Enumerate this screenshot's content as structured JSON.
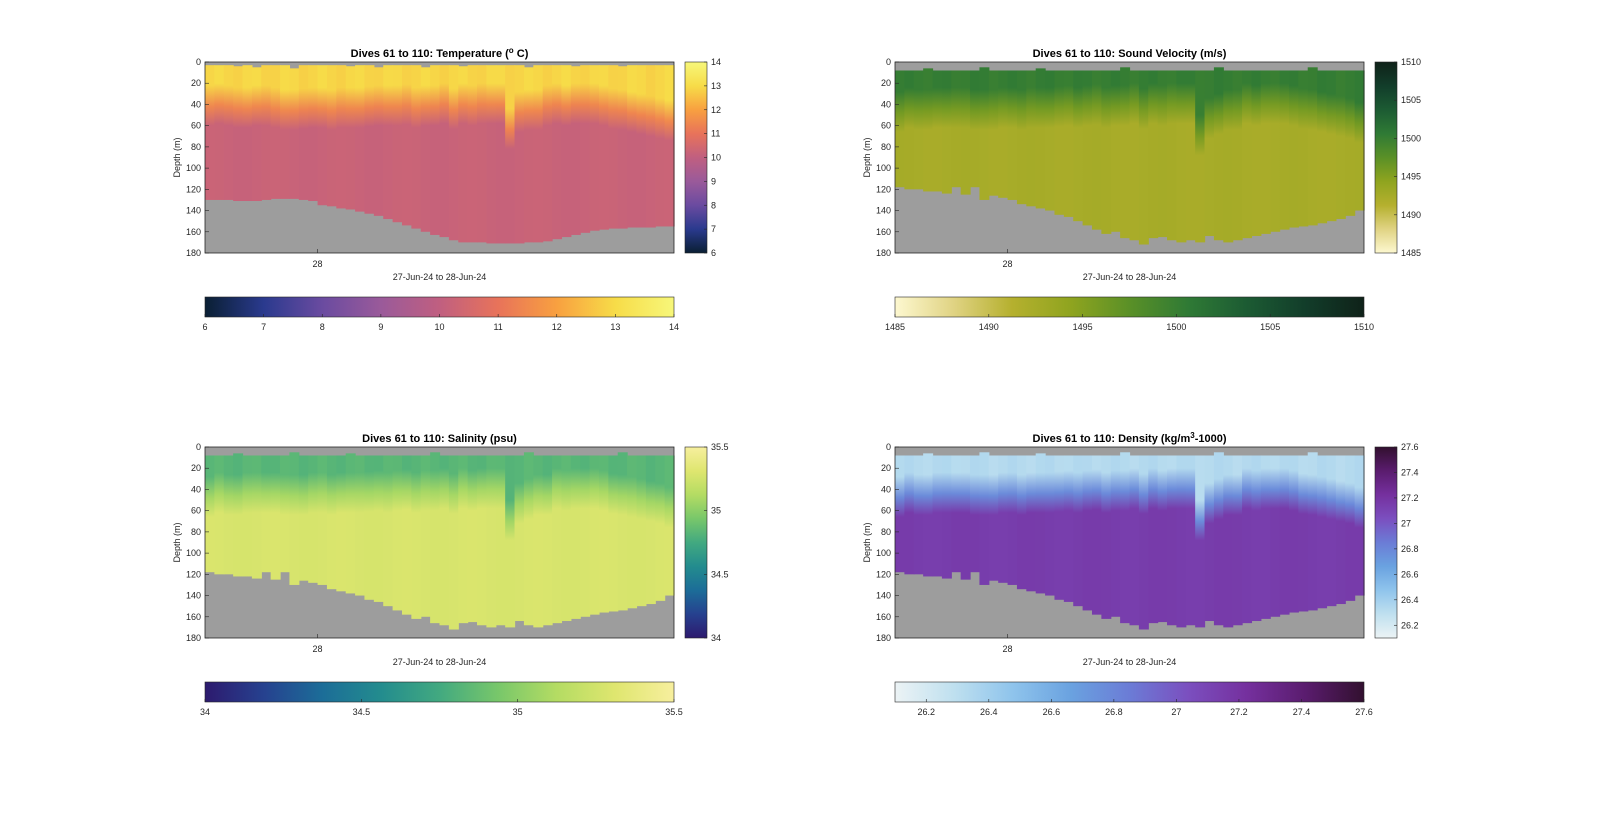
{
  "chart_data": [
    {
      "type": "heatmap",
      "key": "temp",
      "title": "Dives 61 to 110: Temperature (",
      "title_sup": "o",
      "title_tail": " C)",
      "xlabel": "27-Jun-24 to 28-Jun-24",
      "ylabel": "Depth (m)",
      "ylim": [
        0,
        180
      ],
      "y_ticks": [
        "0",
        "20",
        "40",
        "60",
        "80",
        "100",
        "120",
        "140",
        "160",
        "180"
      ],
      "x_tick": "28",
      "colorbar_range": [
        6,
        14
      ],
      "colorbar_ticks": [
        "6",
        "7",
        "8",
        "9",
        "10",
        "11",
        "12",
        "13",
        "14"
      ],
      "colormap": [
        "#0a1f33",
        "#2a3a8e",
        "#6a4ba0",
        "#9a5a9a",
        "#c05f80",
        "#e8735a",
        "#f8a040",
        "#f7dc48",
        "#f7f77a"
      ],
      "columns": 50,
      "surface_value": 12.9,
      "deep_value": 10.2,
      "bottom_depth": [
        130,
        130,
        130,
        131,
        131,
        131,
        130,
        129,
        129,
        129,
        130,
        131,
        135,
        136,
        138,
        139,
        141,
        143,
        145,
        148,
        151,
        154,
        157,
        160,
        163,
        165,
        168,
        170,
        170,
        170,
        171,
        171,
        171,
        171,
        170,
        170,
        169,
        167,
        165,
        163,
        161,
        159,
        158,
        157,
        157,
        156,
        156,
        156,
        155,
        155
      ],
      "thermocline_depth": [
        42,
        40,
        42,
        44,
        44,
        42,
        42,
        44,
        46,
        46,
        45,
        44,
        44,
        46,
        44,
        44,
        44,
        43,
        42,
        42,
        42,
        41,
        44,
        42,
        42,
        40,
        45,
        40,
        42,
        40,
        40,
        40,
        64,
        48,
        46,
        46,
        42,
        40,
        42,
        40,
        40,
        40,
        42,
        45,
        46,
        48,
        50,
        52,
        54,
        56
      ],
      "surface_gap": [
        3,
        3,
        3,
        4,
        3,
        5,
        3,
        3,
        3,
        6,
        3,
        3,
        3,
        3,
        3,
        4,
        3,
        3,
        5,
        3,
        3,
        3,
        3,
        5,
        3,
        3,
        3,
        4,
        3,
        3,
        3,
        3,
        3,
        3,
        5,
        3,
        3,
        3,
        3,
        4,
        3,
        3,
        3,
        3,
        4,
        3,
        3,
        3,
        3,
        3
      ]
    },
    {
      "type": "heatmap",
      "key": "sv",
      "title": "Dives 61 to 110: Sound Velocity (m/s)",
      "xlabel": "27-Jun-24 to 28-Jun-24",
      "ylabel": "Depth (m)",
      "ylim": [
        0,
        180
      ],
      "y_ticks": [
        "0",
        "20",
        "40",
        "60",
        "80",
        "100",
        "120",
        "140",
        "160",
        "180"
      ],
      "x_tick": "28",
      "colorbar_range": [
        1485,
        1510
      ],
      "colorbar_ticks": [
        "1485",
        "1490",
        "1495",
        "1500",
        "1505",
        "1510"
      ],
      "colormap": [
        "#fdf8d0",
        "#e0d383",
        "#b5b02e",
        "#8fa41f",
        "#5a9027",
        "#2f7a35",
        "#1c5b33",
        "#123d2a",
        "#0f2219"
      ],
      "columns": 50,
      "surface_value": 1500.2,
      "deep_value": 1492.4,
      "bottom_depth": [
        118,
        120,
        120,
        122,
        122,
        124,
        118,
        125,
        118,
        130,
        126,
        128,
        130,
        134,
        136,
        138,
        140,
        144,
        146,
        150,
        154,
        158,
        162,
        160,
        166,
        168,
        172,
        166,
        165,
        168,
        170,
        168,
        170,
        164,
        168,
        170,
        168,
        166,
        164,
        162,
        160,
        158,
        156,
        155,
        154,
        152,
        150,
        148,
        145,
        140
      ],
      "thermocline_depth": [
        48,
        44,
        46,
        46,
        44,
        44,
        44,
        44,
        46,
        46,
        46,
        44,
        44,
        46,
        44,
        44,
        44,
        43,
        42,
        44,
        42,
        41,
        44,
        42,
        42,
        40,
        45,
        40,
        42,
        40,
        40,
        40,
        70,
        54,
        50,
        46,
        46,
        40,
        42,
        40,
        40,
        40,
        42,
        45,
        46,
        48,
        50,
        52,
        54,
        58
      ],
      "surface_gap": [
        8,
        8,
        8,
        6,
        8,
        8,
        8,
        8,
        8,
        5,
        8,
        8,
        8,
        8,
        8,
        6,
        8,
        8,
        8,
        8,
        8,
        8,
        8,
        8,
        5,
        8,
        8,
        8,
        8,
        8,
        8,
        8,
        8,
        8,
        5,
        8,
        8,
        8,
        8,
        8,
        8,
        8,
        8,
        8,
        5,
        8,
        8,
        8,
        8,
        8
      ]
    },
    {
      "type": "heatmap",
      "key": "sal",
      "title": "Dives 61 to 110: Salinity (psu)",
      "xlabel": "27-Jun-24 to 28-Jun-24",
      "ylabel": "Depth (m)",
      "ylim": [
        0,
        180
      ],
      "y_ticks": [
        "0",
        "20",
        "40",
        "60",
        "80",
        "100",
        "120",
        "140",
        "160",
        "180"
      ],
      "x_tick": "28",
      "colorbar_range": [
        34,
        35.5
      ],
      "colorbar_ticks": [
        "34",
        "34.5",
        "35",
        "35.5"
      ],
      "colormap": [
        "#2d1a6e",
        "#26418f",
        "#1c6d98",
        "#238c8e",
        "#42a980",
        "#78c76a",
        "#b4dc63",
        "#dfe66f",
        "#f7ef9e"
      ],
      "columns": 50,
      "surface_value": 34.83,
      "deep_value": 35.28,
      "bottom_depth": [
        118,
        120,
        120,
        122,
        122,
        124,
        118,
        125,
        118,
        130,
        126,
        128,
        130,
        134,
        136,
        138,
        140,
        144,
        146,
        150,
        154,
        158,
        162,
        160,
        166,
        168,
        172,
        166,
        165,
        168,
        170,
        168,
        170,
        164,
        168,
        170,
        168,
        166,
        164,
        162,
        160,
        158,
        156,
        155,
        154,
        152,
        150,
        148,
        145,
        140
      ],
      "thermocline_depth": [
        48,
        44,
        46,
        46,
        44,
        44,
        44,
        44,
        46,
        46,
        46,
        44,
        44,
        46,
        44,
        44,
        44,
        43,
        42,
        44,
        42,
        41,
        44,
        42,
        42,
        40,
        45,
        40,
        42,
        40,
        40,
        40,
        70,
        54,
        50,
        46,
        46,
        40,
        42,
        40,
        40,
        40,
        42,
        45,
        46,
        48,
        50,
        52,
        54,
        58
      ],
      "surface_gap": [
        8,
        8,
        8,
        6,
        8,
        8,
        8,
        8,
        8,
        5,
        8,
        8,
        8,
        8,
        8,
        6,
        8,
        8,
        8,
        8,
        8,
        8,
        8,
        8,
        5,
        8,
        8,
        8,
        8,
        8,
        8,
        8,
        8,
        8,
        5,
        8,
        8,
        8,
        8,
        8,
        8,
        8,
        8,
        8,
        5,
        8,
        8,
        8,
        8,
        8
      ]
    },
    {
      "type": "heatmap",
      "key": "dens",
      "title": "Dives 61 to 110: Density (kg/m",
      "title_sup": "3",
      "title_tail": "-1000)",
      "xlabel": "27-Jun-24 to 28-Jun-24",
      "ylabel": "Depth (m)",
      "ylim": [
        0,
        180
      ],
      "y_ticks": [
        "0",
        "20",
        "40",
        "60",
        "80",
        "100",
        "120",
        "140",
        "160",
        "180"
      ],
      "x_tick": "28",
      "colorbar_range": [
        26.1,
        27.6
      ],
      "colorbar_ticks": [
        "26.2",
        "26.4",
        "26.6",
        "26.8",
        "27",
        "27.2",
        "27.4",
        "27.6"
      ],
      "colormap": [
        "#ecf3f5",
        "#bfe0ef",
        "#8fc4ec",
        "#6aa2e0",
        "#6b7cd6",
        "#7b4fbf",
        "#75309e",
        "#5a1c6e",
        "#32102f"
      ],
      "columns": 50,
      "surface_value": 26.33,
      "deep_value": 27.15,
      "bottom_depth": [
        118,
        120,
        120,
        122,
        122,
        124,
        118,
        125,
        118,
        130,
        126,
        128,
        130,
        134,
        136,
        138,
        140,
        144,
        146,
        150,
        154,
        158,
        162,
        160,
        166,
        168,
        172,
        166,
        165,
        168,
        170,
        168,
        170,
        164,
        168,
        170,
        168,
        166,
        164,
        162,
        160,
        158,
        156,
        155,
        154,
        152,
        150,
        148,
        145,
        140
      ],
      "thermocline_depth": [
        48,
        44,
        46,
        46,
        44,
        44,
        44,
        44,
        46,
        46,
        46,
        44,
        44,
        46,
        44,
        44,
        44,
        43,
        42,
        44,
        42,
        41,
        44,
        42,
        42,
        40,
        45,
        40,
        42,
        40,
        40,
        40,
        70,
        54,
        50,
        46,
        46,
        40,
        42,
        40,
        40,
        40,
        42,
        45,
        46,
        48,
        50,
        52,
        54,
        58
      ],
      "surface_gap": [
        8,
        8,
        8,
        6,
        8,
        8,
        8,
        8,
        8,
        5,
        8,
        8,
        8,
        8,
        8,
        6,
        8,
        8,
        8,
        8,
        8,
        8,
        8,
        8,
        5,
        8,
        8,
        8,
        8,
        8,
        8,
        8,
        8,
        8,
        5,
        8,
        8,
        8,
        8,
        8,
        8,
        8,
        8,
        8,
        5,
        8,
        8,
        8,
        8,
        8
      ]
    }
  ]
}
